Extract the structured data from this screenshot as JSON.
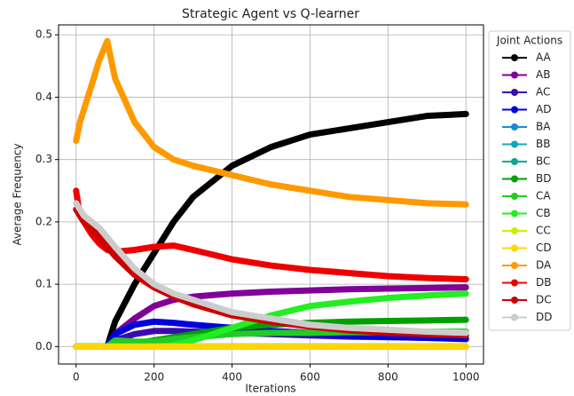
{
  "chart_data": {
    "type": "line",
    "title": "Strategic Agent vs Q-learner",
    "x_label": "Iterations",
    "y_label": "Average Frequency",
    "legend_title": "Joint Actions",
    "legend": "outside right",
    "x": [
      0,
      10,
      20,
      40,
      60,
      80,
      100,
      150,
      200,
      250,
      300,
      400,
      500,
      600,
      700,
      800,
      900,
      1000
    ],
    "series": [
      {
        "name": "AA",
        "color": "#000000",
        "values": [
          0,
          0,
          0,
          0,
          0,
          0,
          0.04,
          0.1,
          0.15,
          0.2,
          0.24,
          0.29,
          0.32,
          0.34,
          0.35,
          0.36,
          0.37,
          0.373
        ]
      },
      {
        "name": "AB",
        "color": "#800099",
        "values": [
          0,
          0,
          0,
          0,
          0,
          0,
          0.02,
          0.045,
          0.065,
          0.075,
          0.08,
          0.085,
          0.088,
          0.09,
          0.092,
          0.093,
          0.094,
          0.095
        ]
      },
      {
        "name": "AC",
        "color": "#3a0ab0",
        "values": [
          0,
          0,
          0,
          0,
          0,
          0,
          0.01,
          0.02,
          0.025,
          0.025,
          0.024,
          0.022,
          0.02,
          0.018,
          0.016,
          0.015,
          0.014,
          0.013
        ]
      },
      {
        "name": "AD",
        "color": "#0000dd",
        "values": [
          0,
          0,
          0,
          0,
          0,
          0,
          0.02,
          0.035,
          0.04,
          0.038,
          0.035,
          0.03,
          0.025,
          0.022,
          0.018,
          0.016,
          0.014,
          0.012
        ]
      },
      {
        "name": "BA",
        "color": "#1a88d8",
        "values": [
          0,
          0,
          0,
          0,
          0,
          0,
          0,
          0,
          0,
          0,
          0,
          0,
          0,
          0,
          0,
          0,
          0,
          0
        ]
      },
      {
        "name": "BB",
        "color": "#10a8b8",
        "values": [
          0,
          0,
          0,
          0,
          0,
          0,
          0,
          0,
          0,
          0,
          0,
          0,
          0,
          0,
          0,
          0,
          0,
          0
        ]
      },
      {
        "name": "BC",
        "color": "#0aa890",
        "values": [
          0,
          0,
          0,
          0,
          0,
          0,
          0,
          0,
          0,
          0,
          0,
          0,
          0,
          0,
          0,
          0,
          0,
          0
        ]
      },
      {
        "name": "BD",
        "color": "#00a000",
        "values": [
          0,
          0,
          0,
          0,
          0,
          0,
          0.005,
          0.005,
          0.01,
          0.015,
          0.02,
          0.03,
          0.035,
          0.038,
          0.04,
          0.041,
          0.042,
          0.043
        ]
      },
      {
        "name": "CA",
        "color": "#22cc22",
        "values": [
          0,
          0,
          0,
          0,
          0,
          0,
          0.01,
          0.008,
          0.008,
          0.012,
          0.015,
          0.02,
          0.022,
          0.022,
          0.023,
          0.023,
          0.024,
          0.024
        ]
      },
      {
        "name": "CB",
        "color": "#22ee22",
        "values": [
          0,
          0,
          0,
          0,
          0,
          0,
          0,
          0,
          0,
          0.002,
          0.01,
          0.03,
          0.05,
          0.065,
          0.072,
          0.078,
          0.082,
          0.085
        ]
      },
      {
        "name": "CC",
        "color": "#ccee00",
        "values": [
          0,
          0,
          0,
          0,
          0,
          0,
          0,
          0,
          0,
          0,
          0,
          0,
          0,
          0,
          0,
          0,
          0,
          0
        ]
      },
      {
        "name": "CD",
        "color": "#ffd700",
        "values": [
          0,
          0,
          0,
          0,
          0,
          0,
          0,
          0,
          0,
          0,
          0,
          0,
          0,
          0,
          0,
          0,
          0,
          0
        ]
      },
      {
        "name": "DA",
        "color": "#ff9900",
        "values": [
          0.33,
          0.36,
          0.38,
          0.42,
          0.46,
          0.49,
          0.43,
          0.36,
          0.32,
          0.3,
          0.29,
          0.275,
          0.26,
          0.25,
          0.24,
          0.235,
          0.23,
          0.228
        ]
      },
      {
        "name": "DB",
        "color": "#ee0000",
        "values": [
          0.25,
          0.21,
          0.2,
          0.18,
          0.165,
          0.155,
          0.152,
          0.155,
          0.16,
          0.162,
          0.155,
          0.14,
          0.13,
          0.123,
          0.118,
          0.113,
          0.11,
          0.108
        ]
      },
      {
        "name": "DC",
        "color": "#cc0000",
        "values": [
          0.22,
          0.21,
          0.2,
          0.19,
          0.175,
          0.16,
          0.145,
          0.115,
          0.095,
          0.08,
          0.068,
          0.05,
          0.04,
          0.032,
          0.026,
          0.022,
          0.02,
          0.018
        ]
      },
      {
        "name": "DD",
        "color": "#cccccc",
        "values": [
          0.23,
          0.22,
          0.21,
          0.2,
          0.19,
          0.175,
          0.16,
          0.125,
          0.1,
          0.085,
          0.075,
          0.055,
          0.045,
          0.035,
          0.03,
          0.027,
          0.024,
          0.022
        ]
      }
    ],
    "xlim": [
      -45,
      1045
    ],
    "xticks": [
      0,
      200,
      400,
      600,
      800,
      1000
    ],
    "ylim": [
      -0.028,
      0.516
    ],
    "yticks": [
      {
        "value": 0,
        "label": "0.0"
      },
      0.1,
      0.2,
      0.3,
      0.4,
      0.5
    ],
    "grid": true
  }
}
